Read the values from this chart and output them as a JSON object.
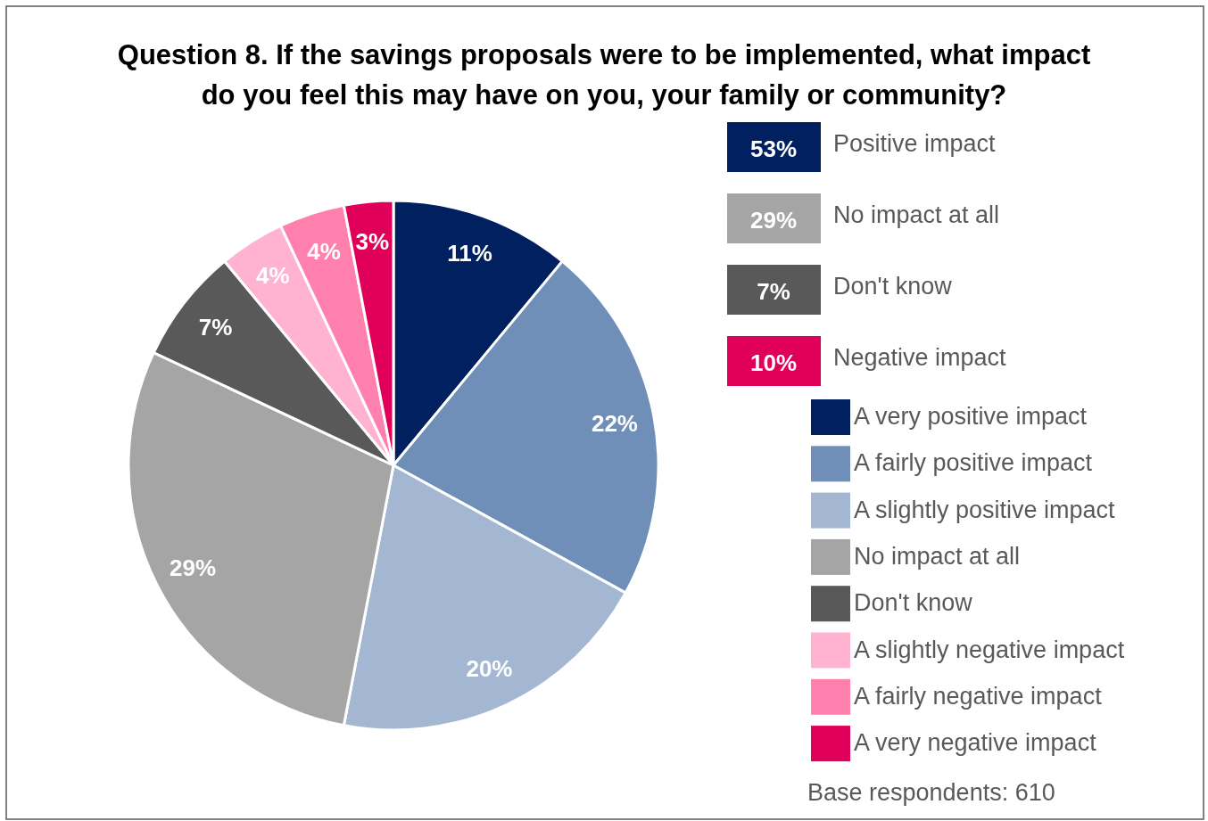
{
  "chart_data": {
    "type": "pie",
    "title": "Question 8. If the savings proposals were to be implemented, what impact do you feel this may have on you, your family or community?",
    "categories": [
      "A very positive impact",
      "A fairly positive impact",
      "A slightly positive impact",
      "No impact at all",
      "Don't know",
      "A slightly negative impact",
      "A fairly negative impact",
      "A very negative impact"
    ],
    "values": [
      11,
      22,
      20,
      29,
      7,
      4,
      4,
      3
    ],
    "colors": [
      "#002060",
      "#6f8fb8",
      "#a3b6d2",
      "#a5a5a5",
      "#595959",
      "#ffb3d1",
      "#ff80ad",
      "#e0005a"
    ],
    "value_labels": [
      "11%",
      "22%",
      "20%",
      "29%",
      "7%",
      "4%",
      "4%",
      "3%"
    ],
    "legend": "right",
    "annotations": [
      "53%",
      "Positive impact",
      "29%",
      "No impact at all",
      "7%",
      "Don't know",
      "10%",
      "Negative impact",
      "Base respondents:   610"
    ]
  }
}
